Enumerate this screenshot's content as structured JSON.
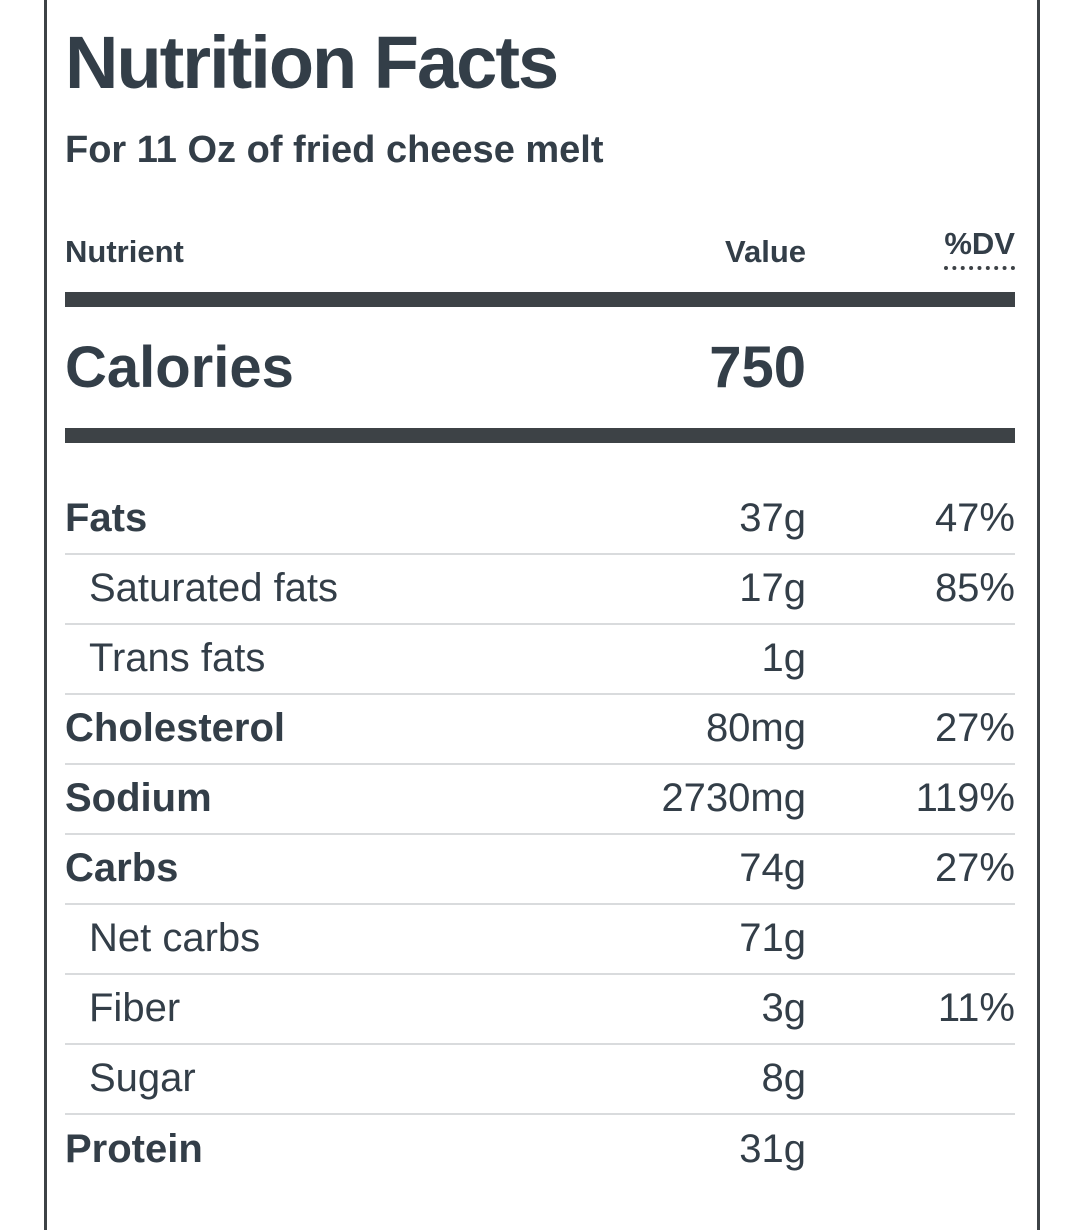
{
  "label": {
    "title": "Nutrition Facts",
    "subtitle": "For 11 Oz of fried cheese melt"
  },
  "columns": {
    "nutrient": "Nutrient",
    "value": "Value",
    "dv": "%DV"
  },
  "calories": {
    "label": "Calories",
    "value": "750"
  },
  "rows": [
    {
      "label": "Fats",
      "value": "37g",
      "dv": "47%"
    },
    {
      "label": "Saturated fats",
      "value": "17g",
      "dv": "85%"
    },
    {
      "label": "Trans fats",
      "value": "1g",
      "dv": ""
    },
    {
      "label": "Cholesterol",
      "value": "80mg",
      "dv": "27%"
    },
    {
      "label": "Sodium",
      "value": "2730mg",
      "dv": "119%"
    },
    {
      "label": "Carbs",
      "value": "74g",
      "dv": "27%"
    },
    {
      "label": "Net carbs",
      "value": "71g",
      "dv": ""
    },
    {
      "label": "Fiber",
      "value": "3g",
      "dv": "11%"
    },
    {
      "label": "Sugar",
      "value": "8g",
      "dv": ""
    },
    {
      "label": "Protein",
      "value": "31g",
      "dv": ""
    }
  ],
  "colors": {
    "text": "#333e48",
    "rule": "#3d4246",
    "separator": "#d9dbdd"
  }
}
